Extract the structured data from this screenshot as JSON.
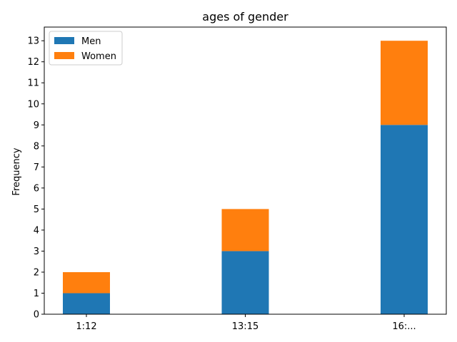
{
  "chart_data": {
    "type": "bar",
    "stacked": true,
    "title": "ages of gender",
    "xlabel": "",
    "ylabel": "Frequency",
    "categories": [
      "1:12",
      "13:15",
      "16:..."
    ],
    "series": [
      {
        "name": "Men",
        "values": [
          1,
          3,
          9
        ],
        "color": "#1f77b4"
      },
      {
        "name": "Women",
        "values": [
          1,
          2,
          4
        ],
        "color": "#ff7f0e"
      }
    ],
    "ylim": [
      0,
      13.65
    ],
    "yticks": [
      0,
      1,
      2,
      3,
      4,
      5,
      6,
      7,
      8,
      9,
      10,
      11,
      12,
      13
    ],
    "grid": false,
    "legend_position": "top-left"
  }
}
